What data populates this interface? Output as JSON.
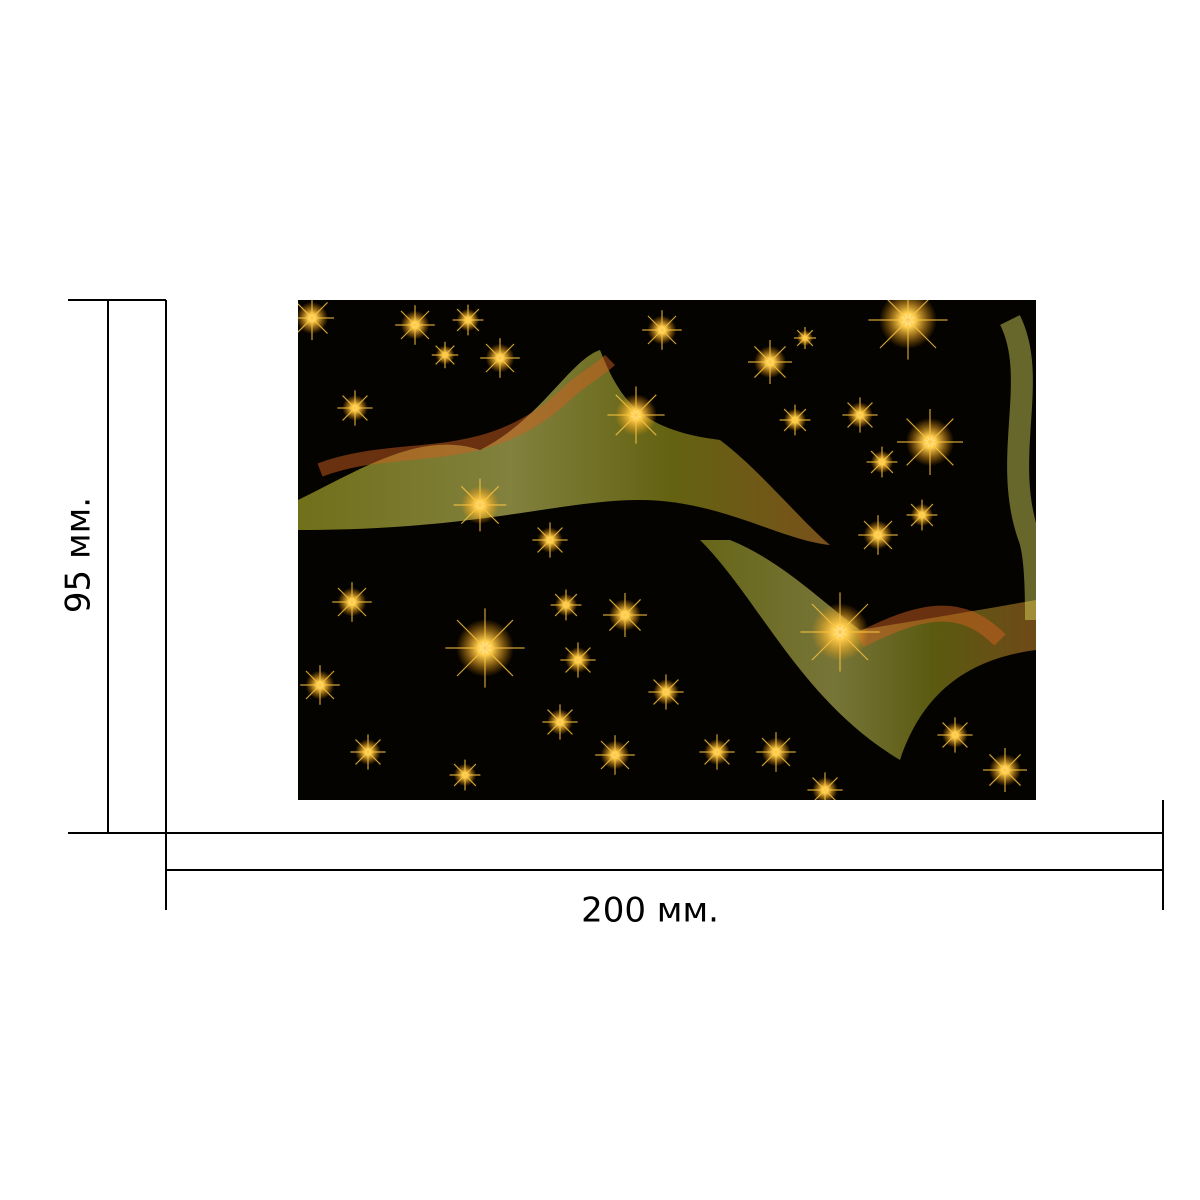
{
  "dimensions": {
    "height": {
      "label": "95 мм."
    },
    "width": {
      "label": "200 мм."
    }
  }
}
